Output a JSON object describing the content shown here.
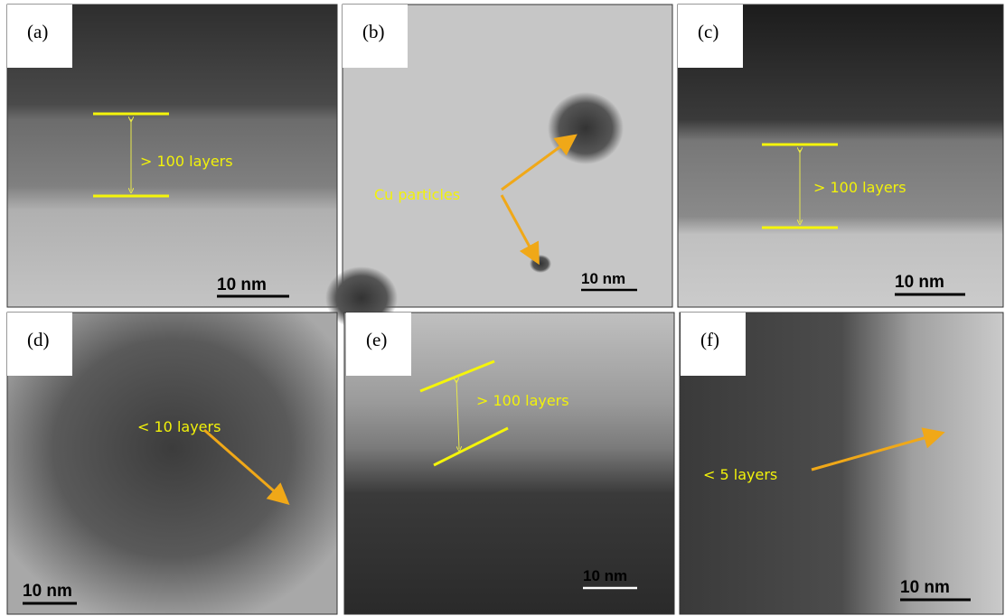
{
  "panels": [
    {
      "label": "(a)",
      "annotation": "> 100 layers",
      "scale_bar": "10 nm"
    },
    {
      "label": "(b)",
      "annotation": "Cu particles",
      "scale_bar": "10 nm"
    },
    {
      "label": "(c)",
      "annotation": "> 100 layers",
      "scale_bar": "10 nm"
    },
    {
      "label": "(d)",
      "annotation": "< 10 layers",
      "scale_bar": "10 nm"
    },
    {
      "label": "(e)",
      "annotation": "> 100 layers",
      "scale_bar": "10 nm"
    },
    {
      "label": "(f)",
      "annotation": "< 5 layers",
      "scale_bar": "10 nm"
    }
  ]
}
